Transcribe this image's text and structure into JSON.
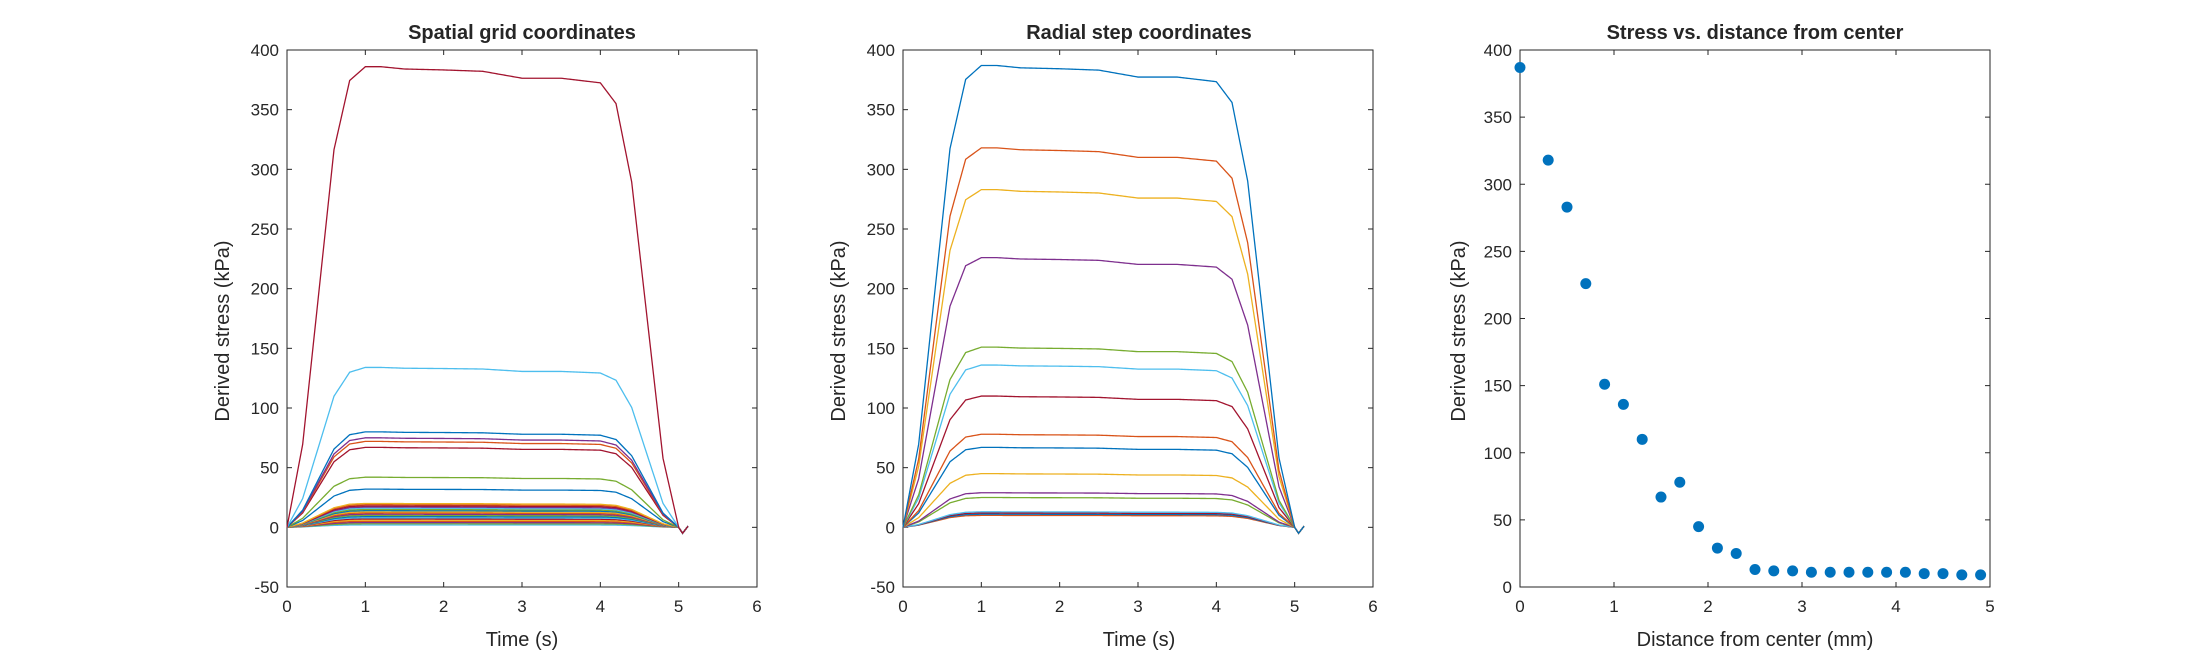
{
  "chart_data": [
    {
      "type": "line",
      "title": "Spatial grid coordinates",
      "xlabel": "Time (s)",
      "ylabel": "Derived stress (kPa)",
      "xlim": [
        0,
        6
      ],
      "ylim": [
        -50,
        400
      ],
      "xticks": [
        "0",
        "1",
        "2",
        "3",
        "4",
        "5",
        "6"
      ],
      "yticks": [
        "-50",
        "0",
        "50",
        "100",
        "150",
        "200",
        "250",
        "300",
        "350",
        "400"
      ],
      "grid": false,
      "legend": "none",
      "profile": {
        "x": [
          0,
          0.2,
          0.4,
          0.6,
          0.8,
          1.0,
          1.2,
          1.5,
          2.0,
          2.5,
          3.0,
          3.5,
          4.0,
          4.2,
          4.4,
          4.6,
          4.8,
          5.0
        ],
        "shape": [
          0,
          0.18,
          0.5,
          0.82,
          0.97,
          1.0,
          1.0,
          0.995,
          0.993,
          0.99,
          0.975,
          0.975,
          0.965,
          0.92,
          0.75,
          0.45,
          0.15,
          0
        ]
      },
      "series": [
        {
          "color": "#A2142F",
          "plateau": 386
        },
        {
          "color": "#4DBEEE",
          "plateau": 134
        },
        {
          "color": "#0072BD",
          "plateau": 80
        },
        {
          "color": "#7E2F8E",
          "plateau": 75
        },
        {
          "color": "#D95319",
          "plateau": 72
        },
        {
          "color": "#A2142F",
          "plateau": 67
        },
        {
          "color": "#77AC30",
          "plateau": 42
        },
        {
          "color": "#0072BD",
          "plateau": 32
        },
        {
          "color": "#EDB120",
          "plateau": 20
        },
        {
          "color": "#D95319",
          "plateau": 19
        },
        {
          "color": "#A2142F",
          "plateau": 18
        },
        {
          "color": "#7E2F8E",
          "plateau": 17
        },
        {
          "color": "#4DBEEE",
          "plateau": 16
        },
        {
          "color": "#77AC30",
          "plateau": 15
        },
        {
          "color": "#0072BD",
          "plateau": 14
        },
        {
          "color": "#EDB120",
          "plateau": 13
        },
        {
          "color": "#D95319",
          "plateau": 12
        },
        {
          "color": "#7E2F8E",
          "plateau": 11
        },
        {
          "color": "#77AC30",
          "plateau": 10
        },
        {
          "color": "#0072BD",
          "plateau": 9
        },
        {
          "color": "#4DBEEE",
          "plateau": 8
        },
        {
          "color": "#A2142F",
          "plateau": 7
        },
        {
          "color": "#EDB120",
          "plateau": 6
        },
        {
          "color": "#D95319",
          "plateau": 5
        },
        {
          "color": "#7E2F8E",
          "plateau": 4
        },
        {
          "color": "#77AC30",
          "plateau": 3
        },
        {
          "color": "#4DBEEE",
          "plateau": 2
        }
      ]
    },
    {
      "type": "line",
      "title": "Radial step coordinates",
      "xlabel": "Time (s)",
      "ylabel": "Derived stress (kPa)",
      "xlim": [
        0,
        6
      ],
      "ylim": [
        -50,
        400
      ],
      "xticks": [
        "0",
        "1",
        "2",
        "3",
        "4",
        "5",
        "6"
      ],
      "yticks": [
        "-50",
        "0",
        "50",
        "100",
        "150",
        "200",
        "250",
        "300",
        "350",
        "400"
      ],
      "grid": false,
      "legend": "none",
      "profile": {
        "x": [
          0,
          0.2,
          0.4,
          0.6,
          0.8,
          1.0,
          1.2,
          1.5,
          2.0,
          2.5,
          3.0,
          3.5,
          4.0,
          4.2,
          4.4,
          4.6,
          4.8,
          5.0
        ],
        "shape": [
          0,
          0.18,
          0.5,
          0.82,
          0.97,
          1.0,
          1.0,
          0.995,
          0.993,
          0.99,
          0.975,
          0.975,
          0.965,
          0.92,
          0.75,
          0.45,
          0.15,
          0
        ]
      },
      "series": [
        {
          "color": "#0072BD",
          "plateau": 387
        },
        {
          "color": "#D95319",
          "plateau": 318
        },
        {
          "color": "#EDB120",
          "plateau": 283
        },
        {
          "color": "#7E2F8E",
          "plateau": 226
        },
        {
          "color": "#77AC30",
          "plateau": 151
        },
        {
          "color": "#4DBEEE",
          "plateau": 136
        },
        {
          "color": "#A2142F",
          "plateau": 110
        },
        {
          "color": "#D95319",
          "plateau": 78
        },
        {
          "color": "#0072BD",
          "plateau": 67
        },
        {
          "color": "#EDB120",
          "plateau": 45
        },
        {
          "color": "#7E2F8E",
          "plateau": 29
        },
        {
          "color": "#77AC30",
          "plateau": 25
        },
        {
          "color": "#4DBEEE",
          "plateau": 13
        },
        {
          "color": "#A2142F",
          "plateau": 12
        },
        {
          "color": "#0072BD",
          "plateau": 11
        },
        {
          "color": "#D95319",
          "plateau": 10
        }
      ]
    },
    {
      "type": "scatter",
      "title": "Stress vs. distance from center",
      "xlabel": "Distance from center (mm)",
      "ylabel": "Derived stress (kPa)",
      "xlim": [
        0,
        5
      ],
      "ylim": [
        0,
        400
      ],
      "xticks": [
        "0",
        "1",
        "2",
        "3",
        "4",
        "5"
      ],
      "yticks": [
        "0",
        "50",
        "100",
        "150",
        "200",
        "250",
        "300",
        "350",
        "400"
      ],
      "grid": false,
      "legend": "none",
      "color": "#0072BD",
      "points": {
        "x": [
          0,
          0.3,
          0.5,
          0.7,
          0.9,
          1.1,
          1.3,
          1.5,
          1.7,
          1.9,
          2.1,
          2.3,
          2.5,
          2.7,
          2.9,
          3.1,
          3.3,
          3.5,
          3.7,
          3.9,
          4.1,
          4.3,
          4.5,
          4.7,
          4.9
        ],
        "y": [
          387,
          318,
          283,
          226,
          151,
          136,
          110,
          67,
          78,
          45,
          29,
          25,
          13,
          12,
          12,
          11,
          11,
          11,
          11,
          11,
          11,
          10,
          10,
          9,
          9
        ]
      }
    }
  ]
}
